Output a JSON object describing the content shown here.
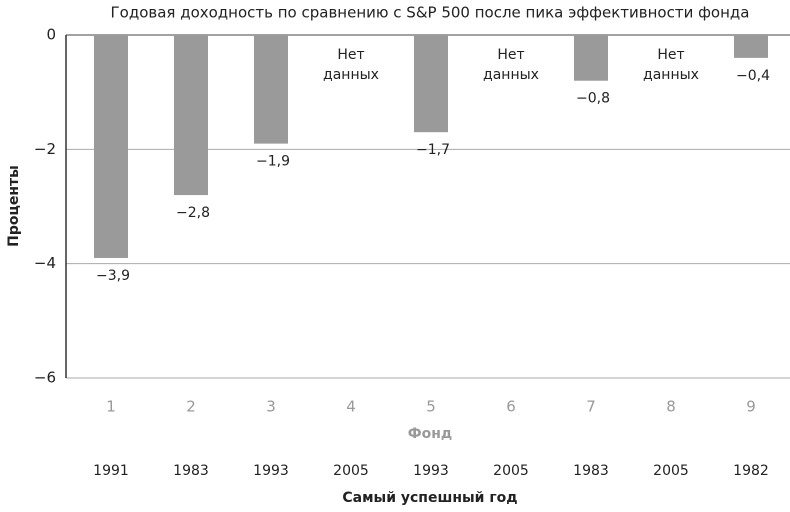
{
  "chart_data": {
    "type": "bar",
    "title": "Годовая доходность по сравнению с S&P 500 после пика эффективности фонда",
    "x_label": "Фонд",
    "y_label": "Проценты",
    "categories": [
      "1",
      "2",
      "3",
      "4",
      "5",
      "6",
      "7",
      "8",
      "9"
    ],
    "values": [
      -3.9,
      -2.8,
      -1.9,
      null,
      -1.7,
      null,
      -0.8,
      null,
      -0.4
    ],
    "value_labels": [
      "−3,9",
      "−2,8",
      "−1,9",
      "Нет данных",
      "−1,7",
      "Нет данных",
      "−0,8",
      "Нет данных",
      "−0,4"
    ],
    "color": "#9a9a9a",
    "ylim": [
      -6,
      0
    ],
    "yticks": [
      {
        "value": -6,
        "label": "−6"
      },
      {
        "value": -4,
        "label": "−4"
      },
      {
        "value": -2,
        "label": "−2"
      },
      0
    ],
    "grid": true,
    "second_row_label": "Самый успешный год",
    "second_row": [
      "1991",
      "1983",
      "1993",
      "2005",
      "1993",
      "2005",
      "1983",
      "2005",
      "1982"
    ]
  }
}
